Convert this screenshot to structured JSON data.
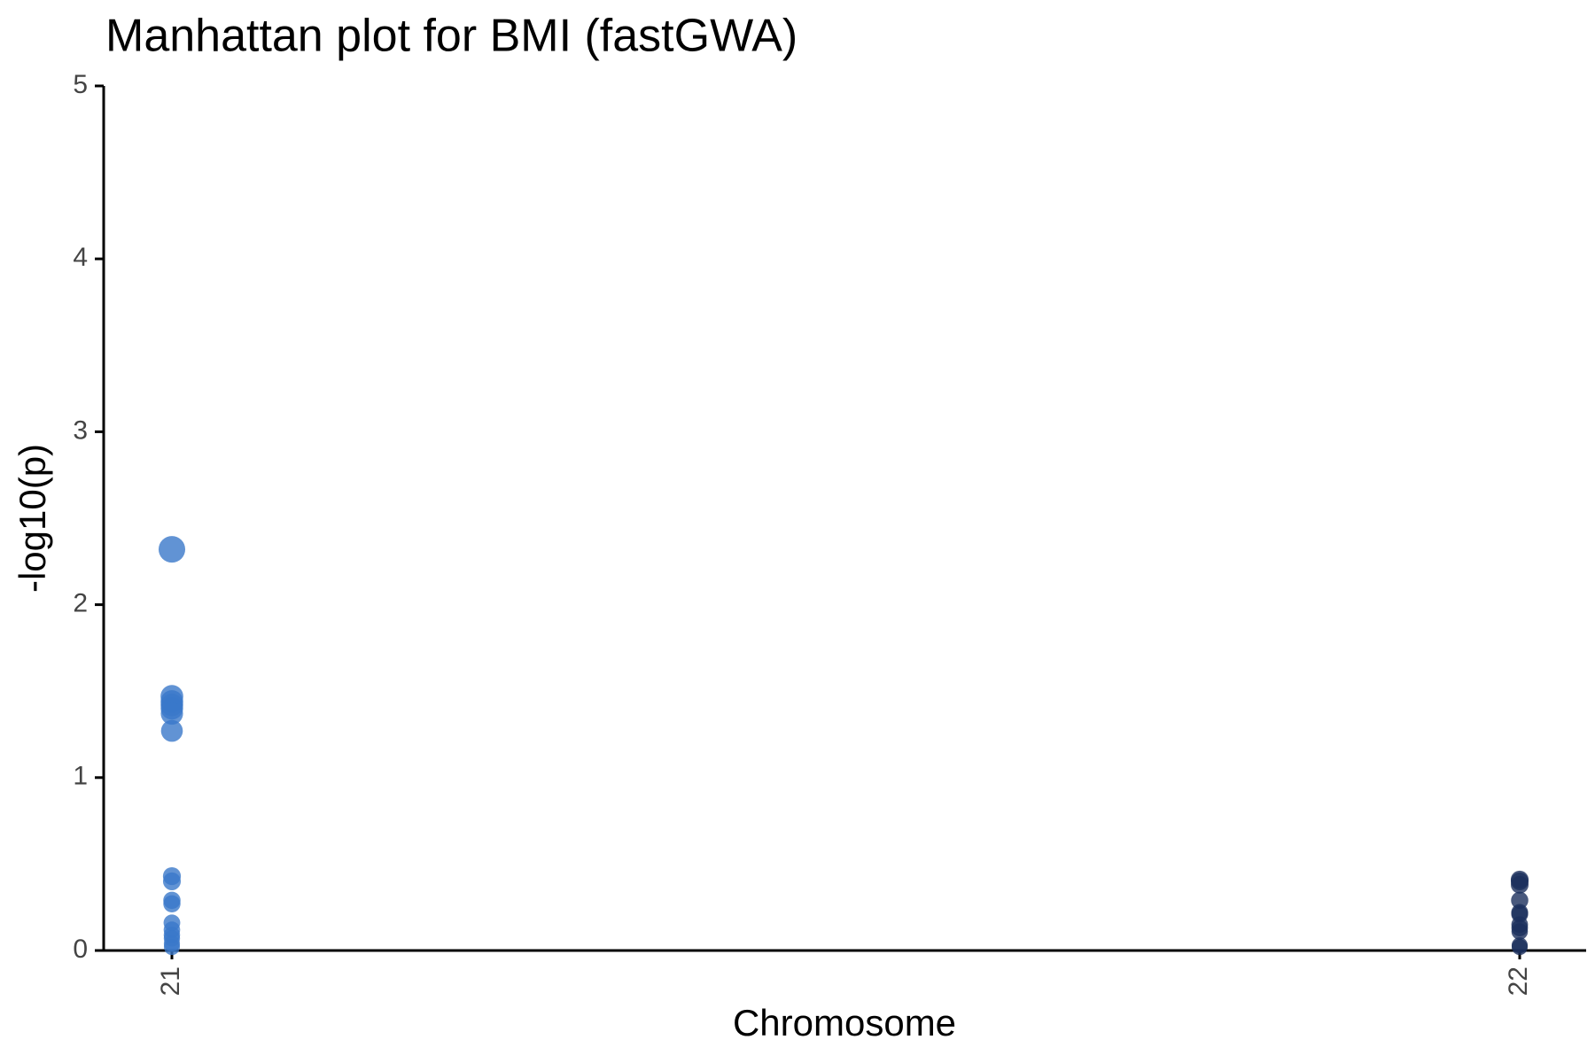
{
  "chart_data": {
    "type": "scatter",
    "title": "Manhattan plot for BMI (fastGWA)",
    "x_label": "Chromosome",
    "y_label": "-log10(p)",
    "categories": [
      "21",
      "22"
    ],
    "series": [
      {
        "color": "#3a78c9",
        "values": [
          2.32,
          1.47,
          1.44,
          1.42,
          1.4,
          1.37,
          1.27,
          0.43,
          0.4,
          0.29,
          0.27,
          0.16,
          0.12,
          0.09,
          0.07,
          0.04,
          0.02
        ]
      },
      {
        "color": "#1b2f5c",
        "values": [
          0.41,
          0.4,
          0.38,
          0.29,
          0.22,
          0.21,
          0.15,
          0.13,
          0.11,
          0.03,
          0.02
        ]
      }
    ],
    "ylim": [
      0,
      5
    ],
    "yticks": [
      0,
      1,
      2,
      3,
      4,
      5
    ],
    "grid": false
  }
}
